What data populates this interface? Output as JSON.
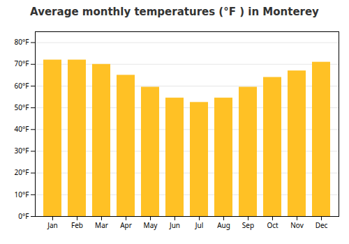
{
  "chart_data": {
    "type": "bar",
    "title": "Average monthly temperatures (°F ) in Monterey",
    "categories": [
      "Jan",
      "Feb",
      "Mar",
      "Apr",
      "May",
      "Jun",
      "Jul",
      "Aug",
      "Sep",
      "Oct",
      "Nov",
      "Dec"
    ],
    "values": [
      72,
      72,
      70,
      65,
      59.5,
      54.5,
      52.5,
      54.5,
      59.5,
      64,
      67,
      71
    ],
    "color": "#FFC125",
    "ylim": [
      0,
      85
    ],
    "yticks": [
      {
        "value": 0,
        "label": "0°F"
      },
      {
        "value": 10,
        "label": "10°F"
      },
      {
        "value": 20,
        "label": "20°F"
      },
      {
        "value": 30,
        "label": "30°F"
      },
      {
        "value": 40,
        "label": "40°F"
      },
      {
        "value": 50,
        "label": "50°F"
      },
      {
        "value": 60,
        "label": "60°F"
      },
      {
        "value": 70,
        "label": "70°F"
      },
      {
        "value": 80,
        "label": "80°F"
      }
    ],
    "grid": true
  }
}
